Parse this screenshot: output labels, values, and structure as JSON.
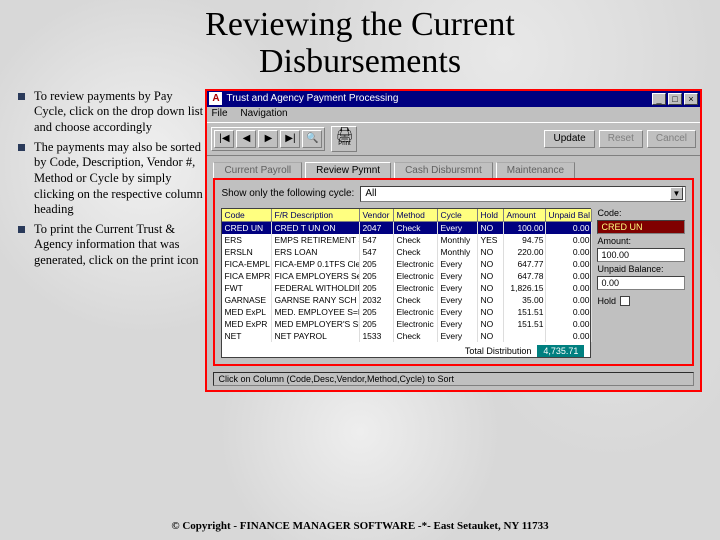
{
  "title_line1": "Reviewing the Current",
  "title_line2": "Disbursements",
  "bullets": [
    "To review payments by Pay Cycle, click on the drop down list and choose accordingly",
    "The payments may also be sorted by Code, Description, Vendor #, Method or Cycle by simply clicking on the respective column heading",
    "To print the Current Trust & Agency information that was generated, click on the print icon"
  ],
  "window": {
    "title": "Trust and Agency Payment Processing",
    "menu": [
      "File",
      "Navigation"
    ],
    "nav": {
      "first": "|◀",
      "prev": "◀",
      "next": "▶",
      "last": "▶|",
      "find": "🔍"
    },
    "print_label": "Print",
    "buttons": {
      "update": "Update",
      "reset": "Reset",
      "cancel": "Cancel"
    },
    "tabs": [
      "Current Payroll",
      "Review Pymnt",
      "Cash Disbursmnt",
      "Maintenance"
    ],
    "cycle_label": "Show only the following cycle:",
    "cycle_value": "All",
    "columns": [
      "Code",
      "F/R Description",
      "Vendor",
      "Method",
      "Cycle",
      "Hold",
      "Amount",
      "Unpaid Bal"
    ],
    "rows": [
      {
        "code": "CRED UN",
        "desc": "CRED T UN ON",
        "vendor": "2047",
        "method": "Check",
        "cycle": "Every",
        "hold": "NO",
        "amount": "100.00",
        "unpaid": "0.00",
        "sel": true
      },
      {
        "code": "ERS",
        "desc": "EMPS RETIREMENT S",
        "vendor": "547",
        "method": "Check",
        "cycle": "Monthly",
        "hold": "YES",
        "amount": "94.75",
        "unpaid": "0.00"
      },
      {
        "code": "ERSLN",
        "desc": "ERS LOAN",
        "vendor": "547",
        "method": "Check",
        "cycle": "Monthly",
        "hold": "NO",
        "amount": "220.00",
        "unpaid": "0.00"
      },
      {
        "code": "FICA-EMPL",
        "desc": "FICA-EMP 0.1TFS Cle",
        "vendor": "205",
        "method": "Electronic",
        "cycle": "Every",
        "hold": "NO",
        "amount": "647.77",
        "unpaid": "0.00"
      },
      {
        "code": "FICA EMPR",
        "desc": "FICA EMPLOYERS Se",
        "vendor": "205",
        "method": "Electronic",
        "cycle": "Every",
        "hold": "NO",
        "amount": "647.78",
        "unpaid": "0.00"
      },
      {
        "code": "FWT",
        "desc": "FEDERAL WITHOLDIN",
        "vendor": "205",
        "method": "Electronic",
        "cycle": "Every",
        "hold": "NO",
        "amount": "1,826.15",
        "unpaid": "0.00"
      },
      {
        "code": "GARNASE",
        "desc": "GARNSE RANY SCH",
        "vendor": "2032",
        "method": "Check",
        "cycle": "Every",
        "hold": "NO",
        "amount": "35.00",
        "unpaid": "0.00"
      },
      {
        "code": "MED ExPL",
        "desc": "MED. EMPLOYEE S=L",
        "vendor": "205",
        "method": "Electronic",
        "cycle": "Every",
        "hold": "NO",
        "amount": "151.51",
        "unpaid": "0.00"
      },
      {
        "code": "MED ExPR",
        "desc": "MED EMPLOYER'S SE",
        "vendor": "205",
        "method": "Electronic",
        "cycle": "Every",
        "hold": "NO",
        "amount": "151.51",
        "unpaid": "0.00"
      },
      {
        "code": "NET",
        "desc": "NET PAYROL",
        "vendor": "1533",
        "method": "Check",
        "cycle": "Every",
        "hold": "NO",
        "amount": "",
        "unpaid": "0.00"
      }
    ],
    "total_label": "Total Distribution",
    "total_value": "4,735.71",
    "side": {
      "code_lbl": "Code:",
      "code_val": "CRED UN",
      "amount_lbl": "Amount:",
      "amount_val": "100.00",
      "unpaid_lbl": "Unpaid Balance:",
      "unpaid_val": "0.00",
      "hold_lbl": "Hold"
    },
    "status": "Click on Column (Code,Desc,Vendor,Method,Cycle) to Sort"
  },
  "footer": "© Copyright - FINANCE MANAGER SOFTWARE -*- East Setauket, NY 11733"
}
